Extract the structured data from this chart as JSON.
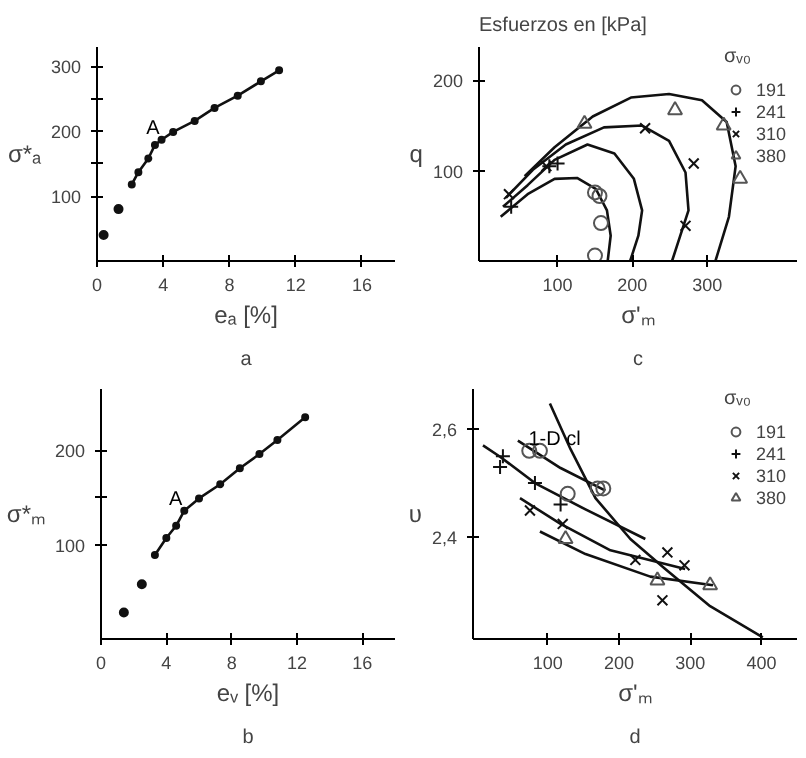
{
  "chart_data": [
    {
      "type": "line",
      "title": "a",
      "xlabel": "eₐ [%]",
      "ylabel": "σ*ₐ",
      "xlim": [
        0,
        18
      ],
      "ylim": [
        0,
        330
      ],
      "xticks": [
        0,
        4,
        8,
        12,
        16
      ],
      "yticks": [
        100,
        {
          "value": 150,
          "label": null
        },
        200,
        {
          "value": 250,
          "label": null
        },
        300
      ],
      "grid": false,
      "legend": false,
      "annotations": [
        {
          "text": "A",
          "x": 3.9,
          "y": 187
        }
      ],
      "series": [
        {
          "type": "scatter",
          "marker": "circle",
          "color": "#111111",
          "x": [
            0.4,
            1.3
          ],
          "values": [
            40,
            80
          ]
        },
        {
          "marker": "circle",
          "color": "#111111",
          "x": [
            2.1,
            2.5,
            3.1,
            3.5,
            3.9,
            4.6,
            5.9,
            7.1,
            8.5,
            9.9,
            11.0
          ],
          "values": [
            118,
            137,
            158,
            179,
            187,
            199,
            216,
            236,
            255,
            277,
            294
          ]
        }
      ]
    },
    {
      "type": "line",
      "title": "c",
      "xlabel": "σ'ₘ",
      "ylabel": "q",
      "xlim": [
        -5,
        420
      ],
      "ylim": [
        0,
        237
      ],
      "xticks": [
        100,
        200,
        300
      ],
      "yticks": [
        100,
        200
      ],
      "grid": false,
      "legend": "top right",
      "legend_title": "σᵥ₀",
      "annotations": [
        "Esfuerzos en [kPa]"
      ],
      "series": [
        {
          "color": "#111111",
          "x": [
            24,
            60,
            96,
            126,
            151,
            166,
            171,
            167
          ],
          "values": [
            49,
            74,
            91,
            92,
            80,
            56,
            28,
            0
          ]
        },
        {
          "color": "#111111",
          "x": [
            27,
            60,
            96,
            140,
            176,
            202,
            213,
            208,
            197
          ],
          "values": [
            60,
            84,
            112,
            129,
            119,
            91,
            56,
            28,
            0
          ]
        },
        {
          "color": "#111111",
          "x": [
            31,
            67,
            111,
            162,
            213,
            249,
            271,
            275,
            264,
            253
          ],
          "values": [
            70,
            101,
            129,
            148,
            150,
            133,
            98,
            56,
            28,
            0
          ]
        },
        {
          "color": "#111111",
          "x": [
            56,
            96,
            147,
            198,
            249,
            293,
            326,
            338,
            329,
            311
          ],
          "values": [
            94,
            126,
            160,
            181,
            185,
            178,
            154,
            105,
            49,
            0
          ]
        },
        {
          "type": "scatter",
          "name": "191",
          "marker": "circle",
          "color": "#555555",
          "x": [
            150,
            156,
            158,
            150
          ],
          "values": [
            76,
            72,
            42,
            6
          ]
        },
        {
          "type": "scatter",
          "name": "241",
          "marker": "cross",
          "color": "#111111",
          "x": [
            38,
            89,
            100
          ],
          "values": [
            60,
            105,
            108
          ]
        },
        {
          "type": "scatter",
          "name": "310",
          "marker": "x",
          "color": "#111111",
          "x": [
            35,
            85,
            217,
            282,
            271
          ],
          "values": [
            74,
            105,
            147,
            108,
            39
          ]
        },
        {
          "type": "scatter",
          "name": "380",
          "marker": "triangle",
          "color": "#555555",
          "x": [
            136,
            257,
            322,
            344
          ],
          "values": [
            152,
            167,
            150,
            91
          ]
        }
      ]
    },
    {
      "type": "line",
      "title": "b",
      "xlabel": "eᵥ [%]",
      "ylabel": "σ*ₘ",
      "xlim": [
        0,
        18
      ],
      "ylim": [
        0,
        265
      ],
      "xticks": [
        0,
        4,
        8,
        12,
        16
      ],
      "yticks": [
        100,
        {
          "value": 150,
          "label": null
        },
        200
      ],
      "grid": false,
      "legend": false,
      "annotations": [
        {
          "text": "A",
          "x": 5.1,
          "y": 136
        }
      ],
      "series": [
        {
          "type": "scatter",
          "marker": "circle",
          "color": "#111111",
          "x": [
            1.4,
            2.5
          ],
          "values": [
            28,
            58
          ]
        },
        {
          "marker": "circle",
          "color": "#111111",
          "x": [
            3.3,
            4.0,
            4.6,
            5.1,
            6.0,
            7.3,
            8.5,
            9.7,
            10.8,
            12.5
          ],
          "values": [
            89,
            107,
            120,
            136,
            149,
            164,
            181,
            196,
            211,
            235
          ]
        }
      ]
    },
    {
      "type": "line",
      "title": "d",
      "xlabel": "σ'ₘ",
      "ylabel": "υ",
      "xlim": [
        -5,
        450
      ],
      "ylim": [
        2.21,
        2.675
      ],
      "xticks": [
        100,
        200,
        300,
        400
      ],
      "yticks": [
        {
          "value": 2.4,
          "label": "2,4"
        },
        {
          "value": 2.6,
          "label": "2,6"
        }
      ],
      "grid": false,
      "legend": "top right",
      "legend_title": "σᵥ₀",
      "annotations": [
        {
          "text": "1-D cl",
          "x": 149,
          "y": 2.56
        }
      ],
      "series": [
        {
          "color": "#111111",
          "x": [
            103,
            132,
            167,
            216,
            265,
            328,
            402
          ],
          "values": [
            2.648,
            2.563,
            2.472,
            2.396,
            2.34,
            2.271,
            2.213
          ]
        },
        {
          "color": "#111111",
          "x": [
            58,
            118,
            181
          ],
          "values": [
            2.579,
            2.528,
            2.486
          ]
        },
        {
          "color": "#111111",
          "x": [
            9,
            33,
            82,
            153,
            237
          ],
          "values": [
            2.57,
            2.549,
            2.5,
            2.451,
            2.396
          ]
        },
        {
          "color": "#111111",
          "x": [
            61,
            118,
            188,
            293
          ],
          "values": [
            2.472,
            2.424,
            2.375,
            2.34
          ]
        },
        {
          "color": "#111111",
          "x": [
            89,
            153,
            244,
            332
          ],
          "values": [
            2.41,
            2.368,
            2.326,
            2.31
          ]
        },
        {
          "type": "scatter",
          "name": "191",
          "marker": "circle",
          "color": "#555555",
          "x": [
            74,
            89,
            128,
            170,
            178
          ],
          "values": [
            2.56,
            2.56,
            2.48,
            2.49,
            2.49
          ]
        },
        {
          "type": "scatter",
          "name": "241",
          "marker": "cross",
          "color": "#111111",
          "x": [
            37,
            33,
            82,
            118
          ],
          "values": [
            2.55,
            2.53,
            2.5,
            2.46
          ]
        },
        {
          "type": "scatter",
          "name": "310",
          "marker": "x",
          "color": "#111111",
          "x": [
            75,
            121,
            223,
            268,
            292,
            261
          ],
          "values": [
            2.449,
            2.424,
            2.357,
            2.371,
            2.347,
            2.282
          ]
        },
        {
          "type": "scatter",
          "name": "380",
          "marker": "triangle",
          "color": "#555555",
          "x": [
            125,
            254,
            328
          ],
          "values": [
            2.396,
            2.319,
            2.31
          ]
        }
      ]
    }
  ]
}
